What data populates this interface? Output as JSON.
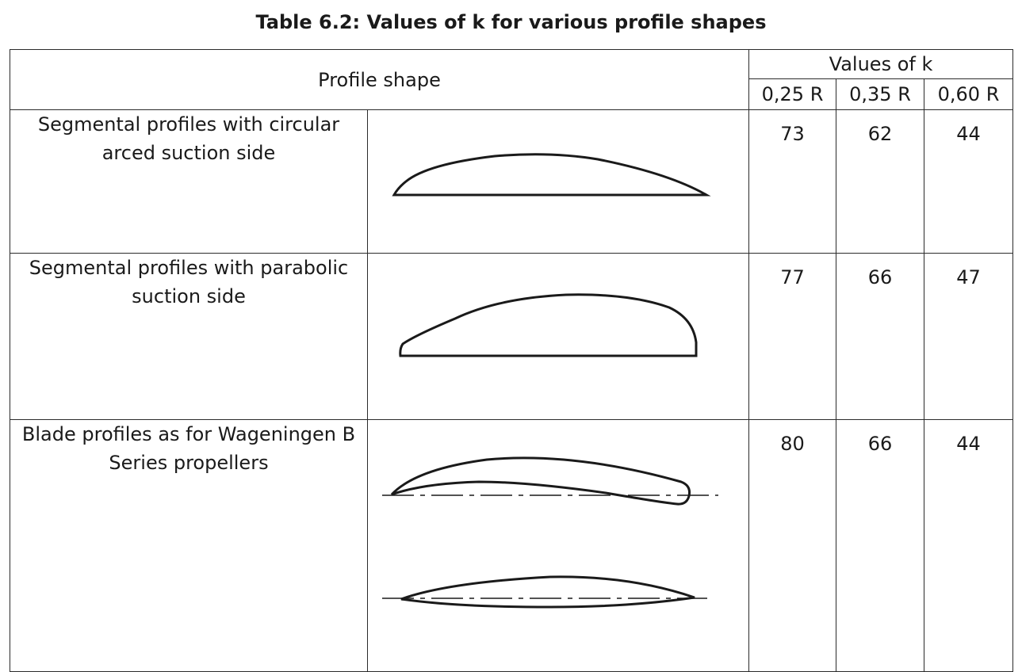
{
  "caption": "Table 6.2: Values of k for various profile shapes",
  "header": {
    "profile_shape": "Profile shape",
    "values_of_k": "Values of k",
    "columns": [
      "0,25 R",
      "0,35 R",
      "0,60 R"
    ]
  },
  "rows": [
    {
      "description": "Segmental profiles with circular arced suction side",
      "line1": "Segmental profiles with circular",
      "line2": "arced suction side",
      "shape_icon": "circular-arc-segment-profile",
      "values": [
        "73",
        "62",
        "44"
      ]
    },
    {
      "description": "Segmental profiles with parabolic suction side",
      "line1": "Segmental profiles with parabolic",
      "line2": "suction side",
      "shape_icon": "parabolic-segment-profile",
      "values": [
        "77",
        "66",
        "47"
      ]
    },
    {
      "description": "Blade profiles as for Wageningen B Series propellers",
      "line1": "Blade profiles as for Wageningen B",
      "line2": "Series propellers",
      "shape_icon": "wageningen-b-series-profiles",
      "values": [
        "80",
        "66",
        "44"
      ]
    }
  ]
}
